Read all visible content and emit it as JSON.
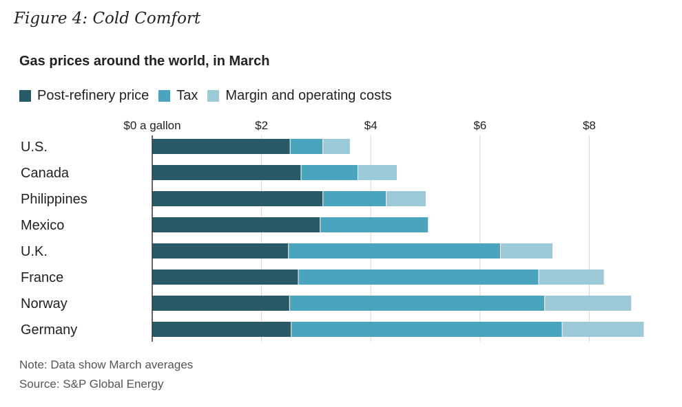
{
  "figure_label": "Figure 4: Cold Comfort",
  "footer": {
    "note": "Note: Data show March averages",
    "source": "Source: S&P Global Energy"
  },
  "colors": {
    "post_refinery": "#275a66",
    "tax": "#4ba4be",
    "margin": "#9cc9d8",
    "grid": "#d6d6d6",
    "axis": "#333333"
  },
  "chart_data": {
    "type": "bar",
    "orientation": "horizontal",
    "stacked": true,
    "title": "Gas prices around the world, in March",
    "x_ticks": [
      "$0 a gallon",
      "$2",
      "$4",
      "$6",
      "$8"
    ],
    "x_tick_values": [
      0,
      2,
      4,
      6,
      8
    ],
    "xlim": [
      0,
      9
    ],
    "grid": "vertical",
    "legend_placement": "top-left",
    "categories": [
      "U.S.",
      "Canada",
      "Philippines",
      "Mexico",
      "U.K.",
      "France",
      "Norway",
      "Germany"
    ],
    "series": [
      {
        "name": "Post-refinery price",
        "color": "#275a66",
        "values": [
          2.53,
          2.73,
          3.13,
          3.08,
          2.5,
          2.68,
          2.52,
          2.55
        ]
      },
      {
        "name": "Tax",
        "color": "#4ba4be",
        "values": [
          0.6,
          1.04,
          1.16,
          1.98,
          3.88,
          4.4,
          4.67,
          4.96
        ]
      },
      {
        "name": "Margin and operating costs",
        "color": "#9cc9d8",
        "values": [
          0.5,
          0.72,
          0.73,
          0.0,
          0.96,
          1.2,
          1.59,
          1.5
        ]
      }
    ]
  }
}
